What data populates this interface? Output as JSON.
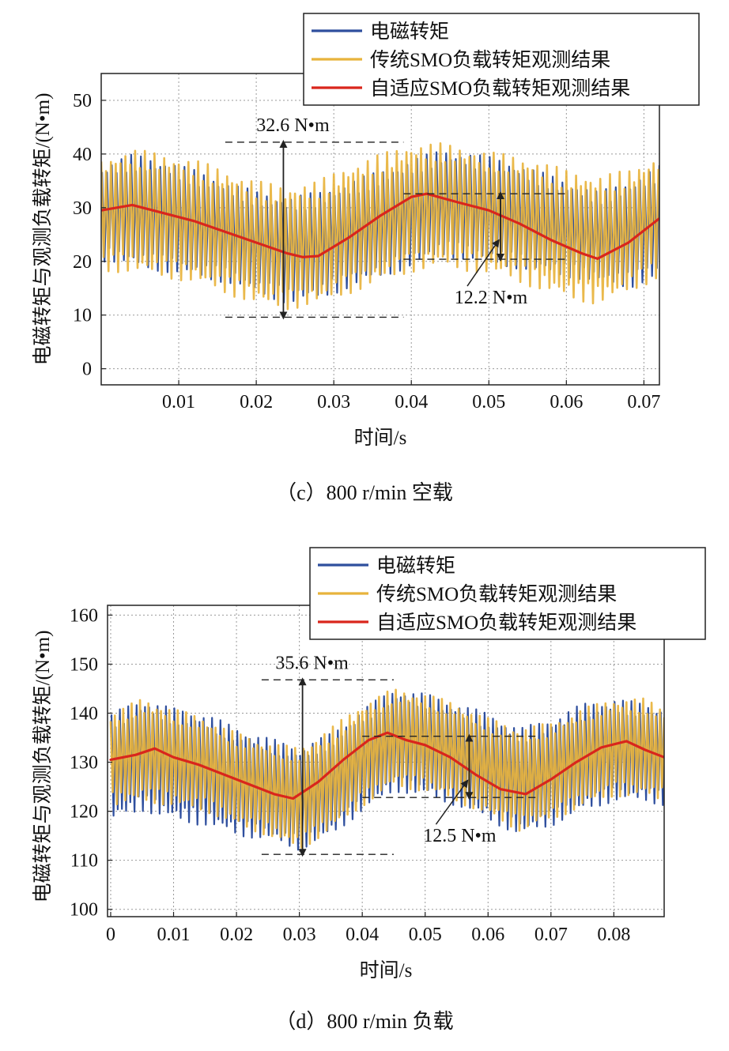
{
  "page": {
    "caption_c": "（c）800 r/min 空载",
    "caption_d": "（d）800 r/min 负载"
  },
  "colors": {
    "electromagnetic": "#2f4f9e",
    "traditional": "#e8b33c",
    "adaptive": "#d9261c",
    "grid": "#9a9a9a",
    "dim": "#222222"
  },
  "chart_data": [
    {
      "id": "c",
      "type": "line",
      "title": "",
      "xlabel": "时间/s",
      "ylabel": "电磁转矩与观测负载转矩/(N•m)",
      "xlim": [
        0,
        0.072
      ],
      "ylim": [
        -3,
        55
      ],
      "grid": true,
      "legend_position": "top-right",
      "xticks": [
        0.01,
        0.02,
        0.03,
        0.04,
        0.05,
        0.06,
        0.07
      ],
      "xtick_labels": [
        "0.01",
        "0.02",
        "0.03",
        "0.04",
        "0.05",
        "0.06",
        "0.07"
      ],
      "yticks": [
        0,
        10,
        20,
        30,
        40,
        50
      ],
      "ytick_labels": [
        "0",
        "10",
        "20",
        "30",
        "40",
        "50"
      ],
      "ripple_frequency_hz": 1600,
      "series": [
        {
          "name": "电磁转矩",
          "color_key": "electromagnetic",
          "kind": "band",
          "x": [
            0,
            0.004,
            0.008,
            0.012,
            0.016,
            0.02,
            0.024,
            0.028,
            0.032,
            0.036,
            0.04,
            0.044,
            0.048,
            0.052,
            0.056,
            0.06,
            0.064,
            0.068,
            0.072
          ],
          "lower": [
            20,
            19,
            18,
            17,
            16,
            14,
            12,
            13,
            15,
            17,
            19,
            21,
            20,
            19,
            18,
            17,
            16,
            15,
            17
          ],
          "upper": [
            38,
            40,
            39,
            37,
            35,
            33,
            32,
            33,
            35,
            37,
            39,
            41,
            40,
            39,
            37,
            35,
            33,
            35,
            38
          ]
        },
        {
          "name": "传统SMO负载转矩观测结果",
          "color_key": "traditional",
          "kind": "band",
          "x": [
            0,
            0.004,
            0.008,
            0.012,
            0.016,
            0.02,
            0.024,
            0.028,
            0.032,
            0.036,
            0.04,
            0.044,
            0.048,
            0.052,
            0.056,
            0.06,
            0.064,
            0.068,
            0.072
          ],
          "lower": [
            18,
            18,
            17,
            16,
            14,
            12,
            11,
            12,
            14,
            16,
            18,
            19,
            18,
            17,
            15,
            13,
            12,
            14,
            17
          ],
          "upper": [
            39,
            41,
            40,
            39,
            37,
            35,
            34,
            35,
            38,
            40,
            42,
            42,
            41,
            40,
            39,
            37,
            36,
            37,
            40
          ]
        },
        {
          "name": "自适应SMO负载转矩观测结果",
          "color_key": "adaptive",
          "kind": "line",
          "x": [
            0,
            0.004,
            0.008,
            0.012,
            0.016,
            0.02,
            0.024,
            0.026,
            0.028,
            0.032,
            0.036,
            0.04,
            0.042,
            0.046,
            0.05,
            0.054,
            0.058,
            0.062,
            0.064,
            0.068,
            0.072
          ],
          "y": [
            29.5,
            30.5,
            29,
            27.5,
            25.5,
            23.5,
            21.5,
            20.8,
            21,
            24.5,
            28.5,
            32,
            32.6,
            31,
            29.5,
            27,
            24,
            21.5,
            20.5,
            23.5,
            28
          ]
        }
      ],
      "annotations": [
        {
          "text": "32.6 N•m",
          "kind": "vertical-span",
          "x": 0.0235,
          "y0": 9.6,
          "y1": 42.2,
          "dash_from": 0.016,
          "dash_to": 0.039
        },
        {
          "text": "12.2 N•m",
          "kind": "vertical-span",
          "x": 0.0515,
          "y0": 20.4,
          "y1": 32.6,
          "dash_from": 0.039,
          "dash_to": 0.06
        }
      ]
    },
    {
      "id": "d",
      "type": "line",
      "title": "",
      "xlabel": "时间/s",
      "ylabel": "电磁转矩与观测负载转矩/(N•m)",
      "xlim": [
        -0.0005,
        0.088
      ],
      "ylim": [
        98.5,
        162
      ],
      "grid": true,
      "legend_position": "top-right",
      "xticks": [
        0,
        0.01,
        0.02,
        0.03,
        0.04,
        0.05,
        0.06,
        0.07,
        0.08
      ],
      "xtick_labels": [
        "0",
        "0.01",
        "0.02",
        "0.03",
        "0.04",
        "0.05",
        "0.06",
        "0.07",
        "0.08"
      ],
      "yticks": [
        100,
        110,
        120,
        130,
        140,
        150,
        160
      ],
      "ytick_labels": [
        "100",
        "110",
        "120",
        "130",
        "140",
        "150",
        "160"
      ],
      "ripple_frequency_hz": 1500,
      "series": [
        {
          "name": "电磁转矩",
          "color_key": "electromagnetic",
          "kind": "band",
          "x": [
            0,
            0.005,
            0.01,
            0.015,
            0.02,
            0.025,
            0.03,
            0.035,
            0.04,
            0.045,
            0.05,
            0.055,
            0.06,
            0.065,
            0.07,
            0.075,
            0.08,
            0.085,
            0.088
          ],
          "lower": [
            118,
            120,
            118,
            117,
            115,
            114,
            112,
            115,
            120,
            124,
            123,
            121,
            118,
            115,
            117,
            120,
            122,
            122,
            121
          ],
          "upper": [
            140,
            143,
            141,
            140,
            137,
            135,
            133,
            136,
            141,
            145,
            144,
            142,
            140,
            137,
            139,
            142,
            143,
            142,
            141
          ]
        },
        {
          "name": "传统SMO负载转矩观测结果",
          "color_key": "traditional",
          "kind": "band",
          "x": [
            0,
            0.005,
            0.01,
            0.015,
            0.02,
            0.025,
            0.03,
            0.035,
            0.04,
            0.045,
            0.05,
            0.055,
            0.06,
            0.065,
            0.07,
            0.075,
            0.08,
            0.085,
            0.088
          ],
          "lower": [
            121,
            122,
            121,
            120,
            117,
            115,
            112,
            116,
            121,
            125,
            124,
            122,
            119,
            116,
            118,
            121,
            123,
            123,
            122
          ],
          "upper": [
            140,
            143,
            141,
            139,
            136,
            134,
            133,
            137,
            142,
            145,
            144,
            142,
            139,
            137,
            138,
            141,
            143,
            143,
            141
          ]
        },
        {
          "name": "自适应SMO负载转矩观测结果",
          "color_key": "adaptive",
          "kind": "line",
          "x": [
            0,
            0.004,
            0.007,
            0.01,
            0.014,
            0.018,
            0.022,
            0.026,
            0.029,
            0.033,
            0.037,
            0.041,
            0.044,
            0.047,
            0.05,
            0.054,
            0.058,
            0.062,
            0.066,
            0.07,
            0.074,
            0.078,
            0.082,
            0.085,
            0.088
          ],
          "y": [
            130.5,
            131.5,
            132.8,
            131,
            129.5,
            127.5,
            125.5,
            123.5,
            122.6,
            126,
            130.5,
            134.5,
            136,
            134.5,
            133.5,
            131,
            127.5,
            124.5,
            123.5,
            126.5,
            130,
            133,
            134.3,
            132.5,
            131
          ]
        }
      ],
      "annotations": [
        {
          "text": "35.6 N•m",
          "kind": "vertical-span",
          "x": 0.0305,
          "y0": 111.2,
          "y1": 146.8,
          "dash_from": 0.024,
          "dash_to": 0.045
        },
        {
          "text": "12.5 N•m",
          "kind": "vertical-span",
          "x": 0.057,
          "y0": 122.8,
          "y1": 135.3,
          "dash_from": 0.04,
          "dash_to": 0.068
        }
      ]
    }
  ]
}
